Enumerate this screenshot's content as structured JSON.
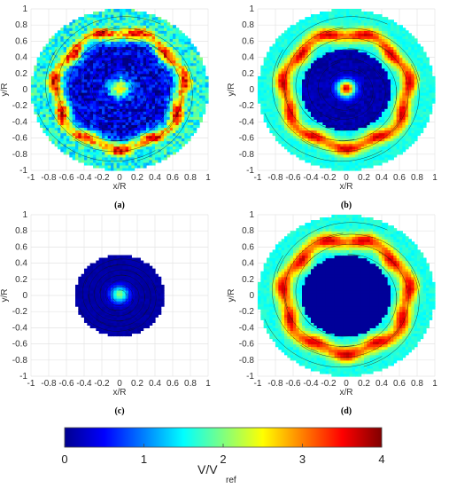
{
  "panels": [
    {
      "label": "(a)",
      "xlabel": "x/R",
      "ylabel": "y/R"
    },
    {
      "label": "(b)",
      "xlabel": "x/R",
      "ylabel": "y/R"
    },
    {
      "label": "(c)",
      "xlabel": "x/R",
      "ylabel": "y/R"
    },
    {
      "label": "(d)",
      "xlabel": "x/R",
      "ylabel": "y/R"
    }
  ],
  "colorbar": {
    "label_main": "V/V",
    "label_sub": "ref",
    "ticks": [
      "0",
      "1",
      "2",
      "3",
      "4"
    ],
    "range": [
      0,
      4
    ],
    "colormap": "jet"
  },
  "chart_data": [
    {
      "type": "heatmap",
      "title": "",
      "panel": "(a)",
      "xlabel": "x/R",
      "ylabel": "y/R",
      "xlim": [
        -1,
        1
      ],
      "ylim": [
        -1,
        1
      ],
      "xticks": [
        "-1",
        "-0.8",
        "-0.6",
        "-0.4",
        "-0.2",
        "0",
        "0.2",
        "0.4",
        "0.6",
        "0.8",
        "1"
      ],
      "yticks": [
        "-1",
        "-0.8",
        "-0.6",
        "-0.4",
        "-0.2",
        "0",
        "0.2",
        "0.4",
        "0.6",
        "0.8",
        "1"
      ],
      "grid": true,
      "domain_radius": 1.0,
      "ring": {
        "radius": 0.72,
        "width": 0.1,
        "peak_value": 3.6
      },
      "inner_hole_radius": 0.0,
      "background_value": 0.4,
      "center_blob": {
        "radius": 0.12,
        "value": 2.2
      },
      "noise": 0.9,
      "streamlines": "swirl"
    },
    {
      "type": "heatmap",
      "title": "",
      "panel": "(b)",
      "xlabel": "x/R",
      "ylabel": "y/R",
      "xlim": [
        -1,
        1
      ],
      "ylim": [
        -1,
        1
      ],
      "xticks": [
        "-1",
        "-0.8",
        "-0.6",
        "-0.4",
        "-0.2",
        "0",
        "0.2",
        "0.4",
        "0.6",
        "0.8",
        "1"
      ],
      "yticks": [
        "-1",
        "-0.8",
        "-0.6",
        "-0.4",
        "-0.2",
        "0",
        "0.2",
        "0.4",
        "0.6",
        "0.8",
        "1"
      ],
      "grid": true,
      "domain_radius": 1.0,
      "ring": {
        "radius": 0.7,
        "width": 0.09,
        "peak_value": 3.7
      },
      "inner_hole_radius": 0.0,
      "background_value": 1.5,
      "center_blob": {
        "radius": 0.1,
        "value": 3.5
      },
      "noise": 0.25,
      "streamlines": "swirl"
    },
    {
      "type": "heatmap",
      "title": "",
      "panel": "(c)",
      "xlabel": "x/R",
      "ylabel": "y/R",
      "xlim": [
        -1,
        1
      ],
      "ylim": [
        -1,
        1
      ],
      "xticks": [
        "-1",
        "-0.8",
        "-0.6",
        "-0.4",
        "-0.2",
        "0",
        "0.2",
        "0.4",
        "0.6",
        "0.8",
        "1"
      ],
      "yticks": [
        "-1",
        "-0.8",
        "-0.6",
        "-0.4",
        "-0.2",
        "0",
        "0.2",
        "0.4",
        "0.6",
        "0.8",
        "1"
      ],
      "grid": true,
      "domain_radius": 0.5,
      "ring": {
        "radius": 0.0,
        "width": 0.0,
        "peak_value": 0
      },
      "inner_hole_radius": 0.0,
      "background_value": 0.15,
      "center_blob": {
        "radius": 0.1,
        "value": 1.9
      },
      "noise": 0.1,
      "streamlines": "swirl"
    },
    {
      "type": "heatmap",
      "title": "",
      "panel": "(d)",
      "xlabel": "x/R",
      "ylabel": "y/R",
      "xlim": [
        -1,
        1
      ],
      "ylim": [
        -1,
        1
      ],
      "xticks": [
        "-1",
        "-0.8",
        "-0.6",
        "-0.4",
        "-0.2",
        "0",
        "0.2",
        "0.4",
        "0.6",
        "0.8",
        "1"
      ],
      "yticks": [
        "-1",
        "-0.8",
        "-0.6",
        "-0.4",
        "-0.2",
        "0",
        "0.2",
        "0.4",
        "0.6",
        "0.8",
        "1"
      ],
      "grid": true,
      "domain_radius": 1.0,
      "ring": {
        "radius": 0.7,
        "width": 0.1,
        "peak_value": 3.7
      },
      "inner_hole_radius": 0.5,
      "background_value": 1.5,
      "center_blob": {
        "radius": 0.0,
        "value": 0
      },
      "noise": 0.25,
      "streamlines": "swirl"
    }
  ]
}
